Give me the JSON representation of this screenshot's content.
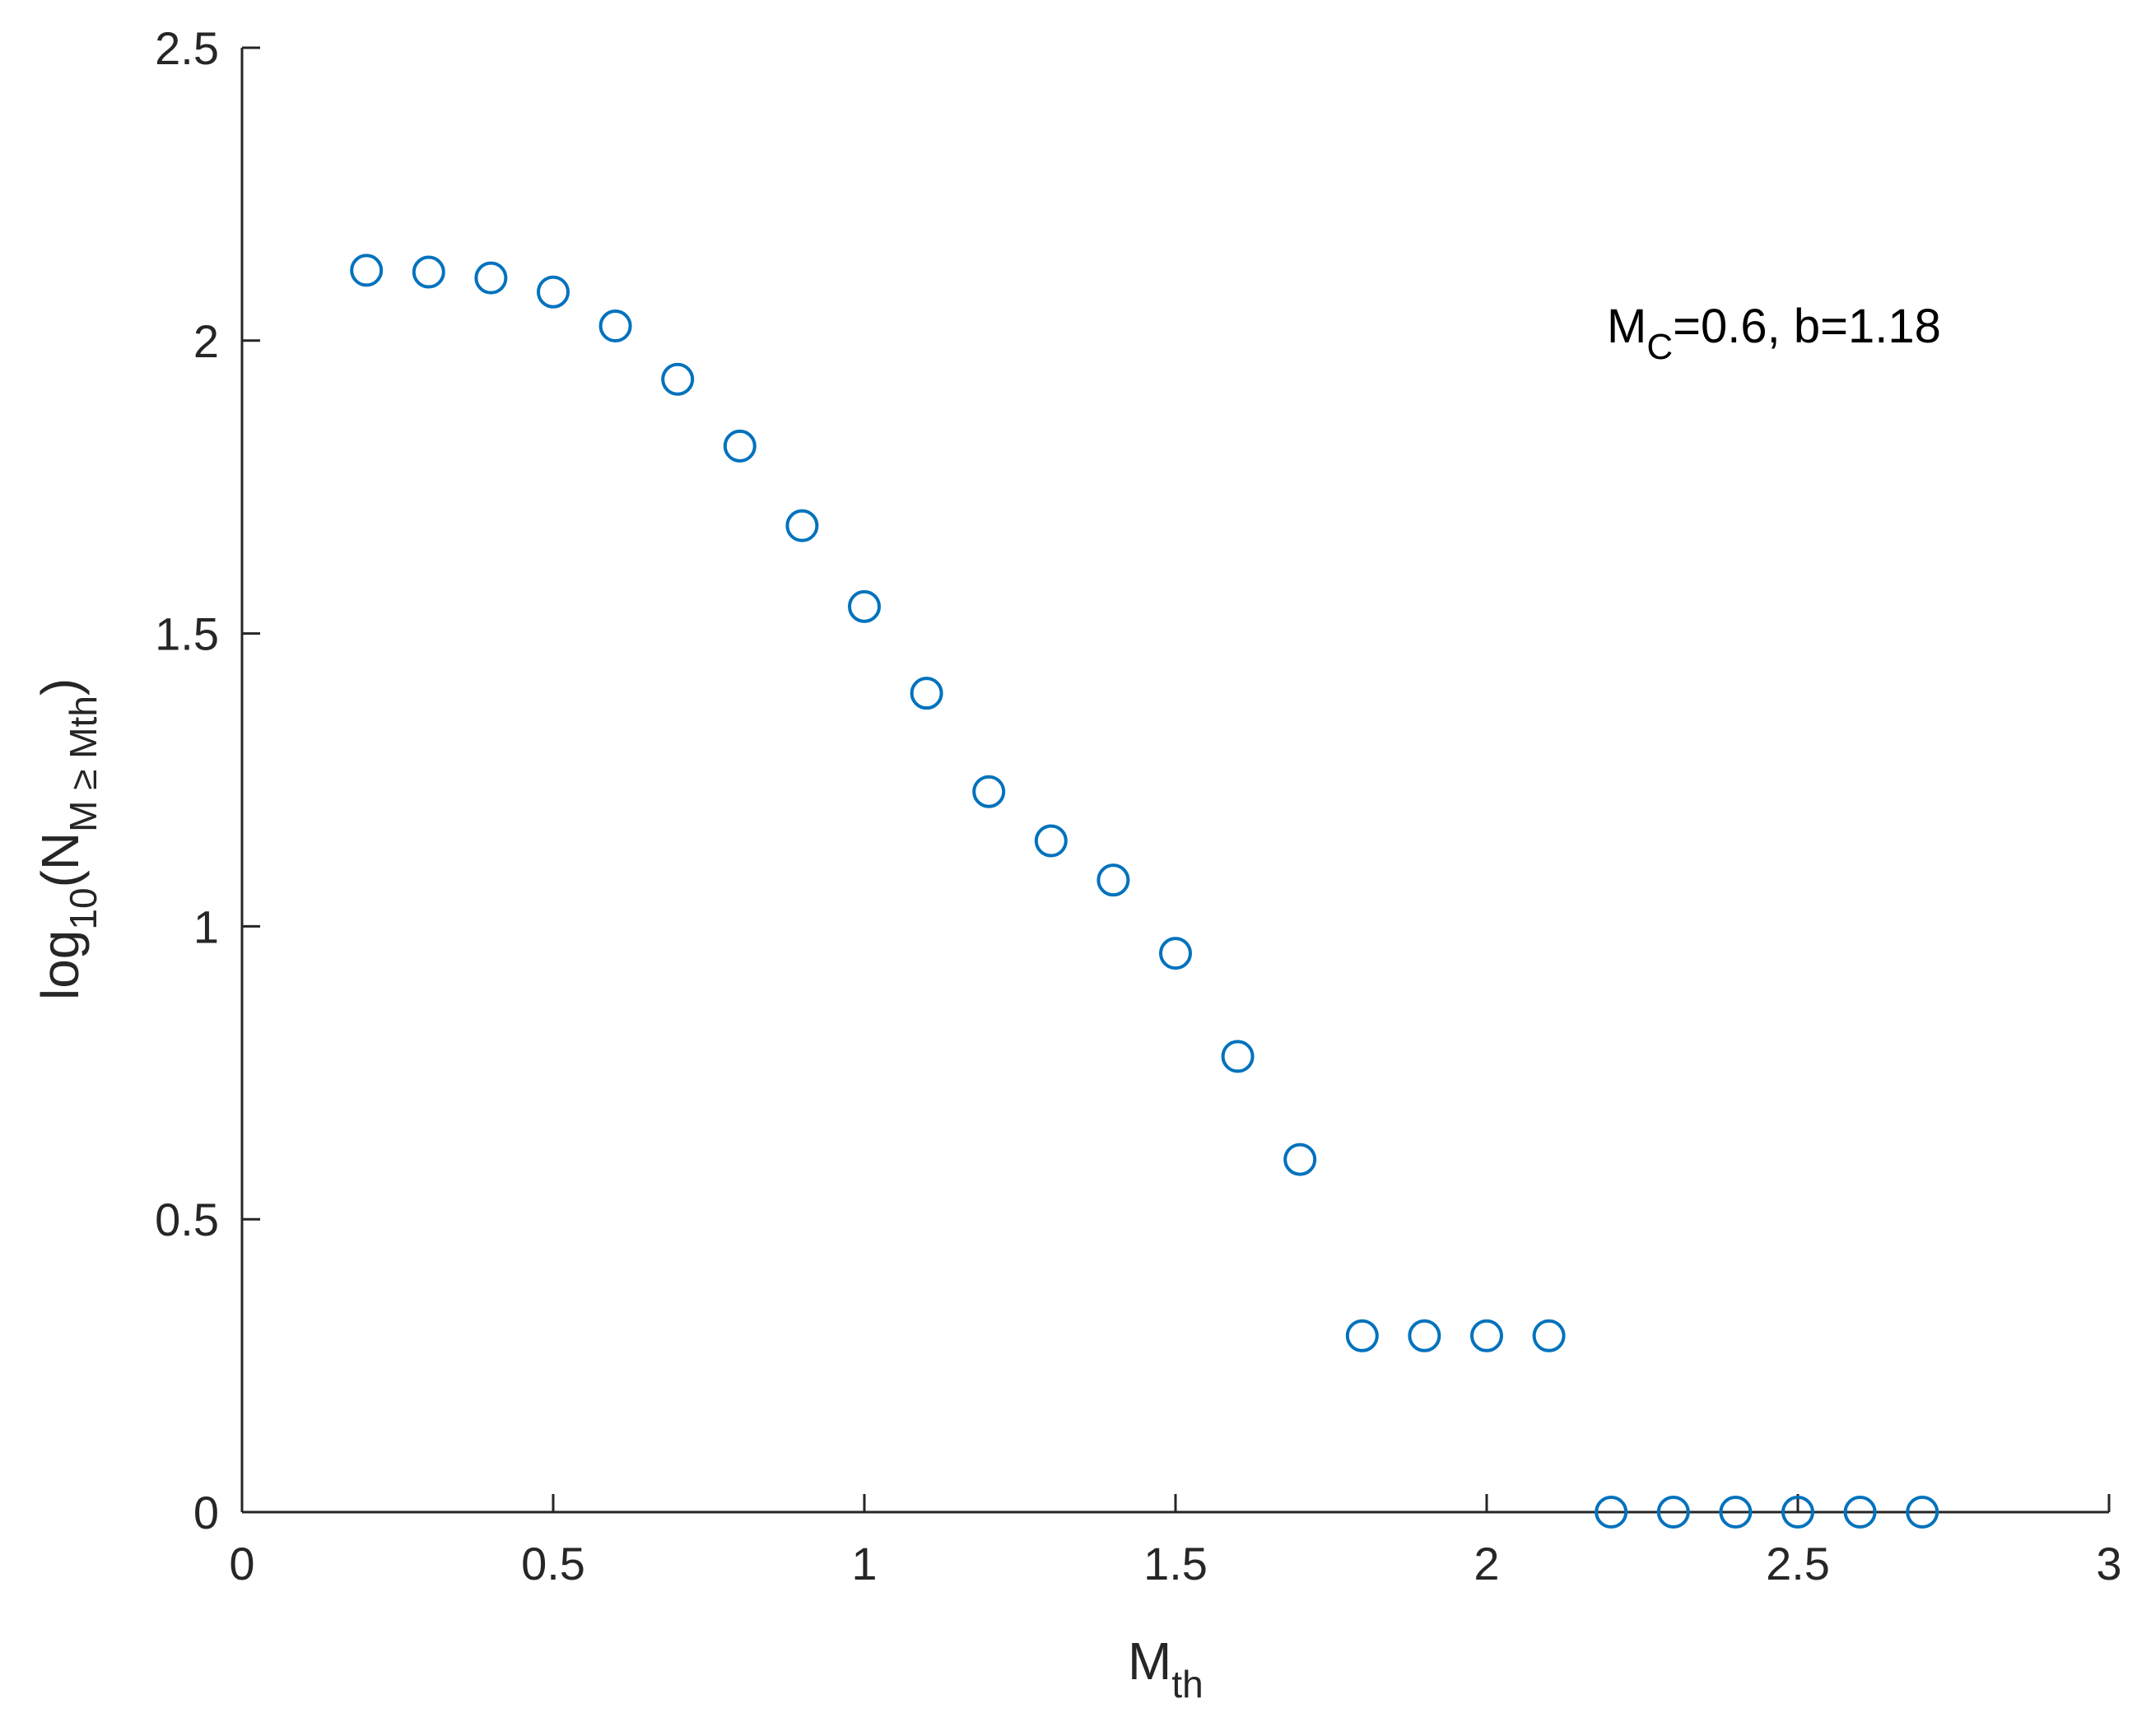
{
  "chart_data": {
    "type": "scatter",
    "xlabel": {
      "base": "M",
      "sub": "th"
    },
    "ylabel": {
      "base": "log",
      "sub1": "10",
      "open": "(N",
      "sub2": "M ≥ Mth",
      "close": ")"
    },
    "annotation": {
      "base": "M",
      "sub": "C",
      "rest": "=0.6, b=1.18"
    },
    "xlim": [
      0,
      3
    ],
    "ylim": [
      0,
      2.5
    ],
    "xticks": [
      "0",
      "0.5",
      "1",
      "1.5",
      "2",
      "2.5",
      "3"
    ],
    "yticks": [
      "0",
      "0.5",
      "1",
      "1.5",
      "2",
      "2.5"
    ],
    "grid": false,
    "marker": "open-circle",
    "color": "#0072BD",
    "x": [
      0.2,
      0.3,
      0.4,
      0.5,
      0.6,
      0.7,
      0.8,
      0.9,
      1.0,
      1.1,
      1.2,
      1.3,
      1.4,
      1.5,
      1.6,
      1.7,
      1.8,
      1.9,
      2.0,
      2.1,
      2.2,
      2.3,
      2.4,
      2.5,
      2.6,
      2.7
    ],
    "y": [
      2.12,
      2.117,
      2.107,
      2.083,
      2.025,
      1.934,
      1.82,
      1.684,
      1.546,
      1.398,
      1.23,
      1.146,
      1.079,
      0.954,
      0.778,
      0.602,
      0.301,
      0.301,
      0.301,
      0.301,
      0,
      0,
      0,
      0,
      0,
      0
    ]
  }
}
